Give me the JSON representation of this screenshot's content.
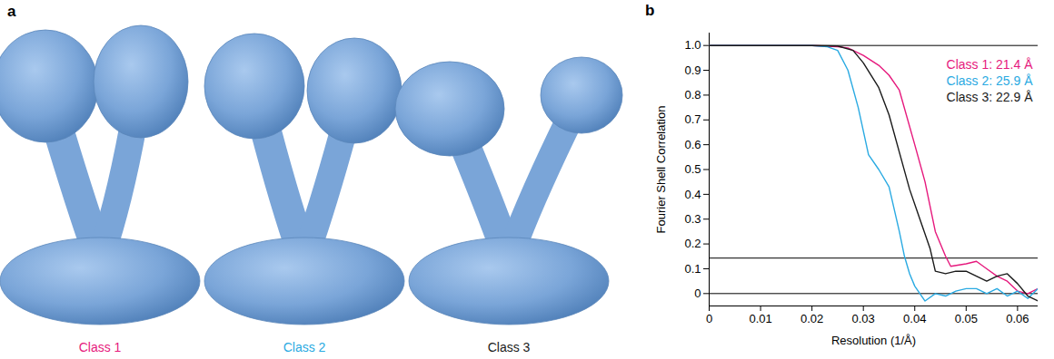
{
  "panel_a": {
    "label": "a",
    "classes": [
      {
        "name": "Class 1",
        "color": "#e6197d"
      },
      {
        "name": "Class 2",
        "color": "#2aaae2"
      },
      {
        "name": "Class 3",
        "color": "#1a1a1a"
      }
    ]
  },
  "chart_data": {
    "type": "line",
    "panel_label": "b",
    "xlabel": "Resolution (1/Å)",
    "ylabel": "Fourier Shell Correlation",
    "xlim": [
      0,
      0.064
    ],
    "ylim": [
      -0.05,
      1.05
    ],
    "xticks": [
      0,
      0.01,
      0.02,
      0.03,
      0.04,
      0.05,
      0.06
    ],
    "yticks": [
      0,
      0.1,
      0.2,
      0.3,
      0.4,
      0.5,
      0.6,
      0.7,
      0.8,
      0.9,
      {
        "value": 1,
        "label": "1.0"
      }
    ],
    "hlines": [
      1,
      0.143,
      0
    ],
    "legend": "top-right",
    "series": [
      {
        "name": "Class 1: 21.4 Å",
        "color": "#e6197d",
        "x": [
          0,
          0.01,
          0.02,
          0.025,
          0.027,
          0.03,
          0.033,
          0.035,
          0.037,
          0.04,
          0.042,
          0.044,
          0.046,
          0.047,
          0.05,
          0.052,
          0.054,
          0.056,
          0.058,
          0.06,
          0.062,
          0.064
        ],
        "values": [
          1,
          1,
          1,
          0.995,
          0.99,
          0.96,
          0.92,
          0.88,
          0.82,
          0.6,
          0.45,
          0.25,
          0.15,
          0.11,
          0.12,
          0.13,
          0.1,
          0.07,
          0.05,
          0.01,
          0,
          0.02
        ]
      },
      {
        "name": "Class 2: 25.9 Å",
        "color": "#2aaae2",
        "x": [
          0,
          0.01,
          0.02,
          0.023,
          0.025,
          0.027,
          0.029,
          0.031,
          0.033,
          0.035,
          0.037,
          0.038,
          0.039,
          0.04,
          0.042,
          0.044,
          0.046,
          0.048,
          0.05,
          0.052,
          0.054,
          0.056,
          0.058,
          0.06,
          0.062,
          0.064
        ],
        "values": [
          1,
          1,
          1,
          0.995,
          0.98,
          0.9,
          0.75,
          0.56,
          0.5,
          0.43,
          0.25,
          0.15,
          0.08,
          0.03,
          -0.03,
          0,
          -0.01,
          0.01,
          0.02,
          0.02,
          0,
          0.02,
          -0.01,
          0.01,
          -0.02,
          0.02
        ]
      },
      {
        "name": "Class 3: 22.9 Å",
        "color": "#1a1a1a",
        "x": [
          0,
          0.01,
          0.02,
          0.025,
          0.028,
          0.03,
          0.033,
          0.035,
          0.037,
          0.039,
          0.041,
          0.043,
          0.044,
          0.046,
          0.048,
          0.05,
          0.052,
          0.054,
          0.056,
          0.058,
          0.06,
          0.062,
          0.064
        ],
        "values": [
          1,
          1,
          1,
          0.998,
          0.98,
          0.93,
          0.83,
          0.72,
          0.57,
          0.42,
          0.3,
          0.18,
          0.09,
          0.08,
          0.09,
          0.09,
          0.07,
          0.05,
          0.07,
          0.08,
          0.04,
          -0.01,
          -0.03
        ]
      }
    ]
  }
}
